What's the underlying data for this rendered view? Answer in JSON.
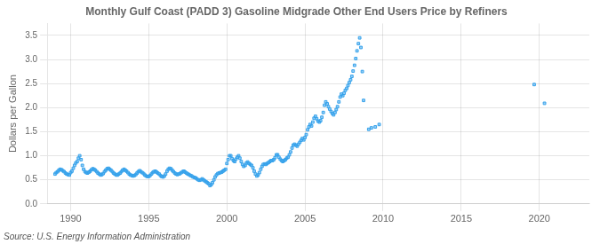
{
  "chart_data": {
    "type": "scatter",
    "title": "Monthly Gulf Coast (PADD 3) Gasoline Midgrade Other End Users Price by Refiners",
    "ylabel": "Dollars per Gallon",
    "annotation": "Source: U.S. Energy Information Administration",
    "marker": "square",
    "grid": true,
    "xlim": [
      1988.5,
      2023.2
    ],
    "xticks": [
      1990,
      1995,
      2000,
      2005,
      2010,
      2015,
      2020
    ],
    "ylim": [
      0.0,
      3.75
    ],
    "yticks": [
      {
        "value": 0.0,
        "label": "0.0"
      },
      0.5,
      {
        "value": 1.0,
        "label": "1.0"
      },
      1.5,
      {
        "value": 2.0,
        "label": "2.0"
      },
      2.5,
      {
        "value": 3.0,
        "label": "3.0"
      },
      3.5
    ],
    "x": [
      1989.0,
      1989.08,
      1989.17,
      1989.25,
      1989.33,
      1989.42,
      1989.5,
      1989.58,
      1989.67,
      1989.75,
      1989.83,
      1989.92,
      1990.0,
      1990.08,
      1990.17,
      1990.25,
      1990.33,
      1990.42,
      1990.5,
      1990.58,
      1990.67,
      1990.75,
      1990.83,
      1990.92,
      1991.0,
      1991.08,
      1991.17,
      1991.25,
      1991.33,
      1991.42,
      1991.5,
      1991.58,
      1991.67,
      1991.75,
      1991.83,
      1991.92,
      1992.0,
      1992.08,
      1992.17,
      1992.25,
      1992.33,
      1992.42,
      1992.5,
      1992.58,
      1992.67,
      1992.75,
      1992.83,
      1992.92,
      1993.0,
      1993.08,
      1993.17,
      1993.25,
      1993.33,
      1993.42,
      1993.5,
      1993.58,
      1993.67,
      1993.75,
      1993.83,
      1993.92,
      1994.0,
      1994.08,
      1994.17,
      1994.25,
      1994.33,
      1994.42,
      1994.5,
      1994.58,
      1994.67,
      1994.75,
      1994.83,
      1994.92,
      1995.0,
      1995.08,
      1995.17,
      1995.25,
      1995.33,
      1995.42,
      1995.5,
      1995.58,
      1995.67,
      1995.75,
      1995.83,
      1995.92,
      1996.0,
      1996.08,
      1996.17,
      1996.25,
      1996.33,
      1996.42,
      1996.5,
      1996.58,
      1996.67,
      1996.75,
      1996.83,
      1996.92,
      1997.0,
      1997.08,
      1997.17,
      1997.25,
      1997.33,
      1997.42,
      1997.5,
      1997.58,
      1997.67,
      1997.75,
      1997.83,
      1997.92,
      1998.0,
      1998.08,
      1998.17,
      1998.25,
      1998.33,
      1998.42,
      1998.5,
      1998.58,
      1998.67,
      1998.75,
      1998.83,
      1998.92,
      1999.0,
      1999.08,
      1999.17,
      1999.25,
      1999.33,
      1999.42,
      1999.5,
      1999.58,
      1999.67,
      1999.75,
      1999.83,
      1999.92,
      2000.0,
      2000.08,
      2000.17,
      2000.25,
      2000.33,
      2000.42,
      2000.5,
      2000.58,
      2000.67,
      2000.75,
      2000.83,
      2000.92,
      2001.0,
      2001.08,
      2001.17,
      2001.25,
      2001.33,
      2001.42,
      2001.5,
      2001.58,
      2001.67,
      2001.75,
      2001.83,
      2001.92,
      2002.0,
      2002.08,
      2002.17,
      2002.25,
      2002.33,
      2002.42,
      2002.5,
      2002.58,
      2002.67,
      2002.75,
      2002.83,
      2002.92,
      2003.0,
      2003.08,
      2003.17,
      2003.25,
      2003.33,
      2003.42,
      2003.5,
      2003.58,
      2003.67,
      2003.75,
      2003.83,
      2003.92,
      2004.0,
      2004.08,
      2004.17,
      2004.25,
      2004.33,
      2004.42,
      2004.5,
      2004.58,
      2004.67,
      2004.75,
      2004.83,
      2004.92,
      2005.0,
      2005.08,
      2005.17,
      2005.25,
      2005.33,
      2005.42,
      2005.5,
      2005.58,
      2005.67,
      2005.75,
      2005.83,
      2005.92,
      2006.0,
      2006.08,
      2006.17,
      2006.25,
      2006.33,
      2006.42,
      2006.5,
      2006.58,
      2006.67,
      2006.75,
      2006.83,
      2006.92,
      2007.0,
      2007.08,
      2007.17,
      2007.25,
      2007.33,
      2007.42,
      2007.5,
      2007.58,
      2007.67,
      2007.75,
      2007.83,
      2007.92,
      2008.0,
      2008.08,
      2008.17,
      2008.25,
      2008.33,
      2008.42,
      2008.5,
      2008.58,
      2008.67,
      2008.75,
      2009.08,
      2009.25,
      2009.5,
      2009.75,
      2019.67,
      2020.33
    ],
    "values": [
      0.62,
      0.65,
      0.67,
      0.7,
      0.72,
      0.71,
      0.69,
      0.67,
      0.64,
      0.62,
      0.61,
      0.6,
      0.65,
      0.68,
      0.74,
      0.8,
      0.85,
      0.88,
      0.95,
      1.0,
      0.92,
      0.8,
      0.72,
      0.67,
      0.65,
      0.64,
      0.66,
      0.68,
      0.71,
      0.73,
      0.72,
      0.7,
      0.67,
      0.64,
      0.62,
      0.6,
      0.61,
      0.63,
      0.67,
      0.7,
      0.73,
      0.74,
      0.72,
      0.7,
      0.67,
      0.64,
      0.62,
      0.6,
      0.6,
      0.62,
      0.64,
      0.67,
      0.7,
      0.72,
      0.7,
      0.68,
      0.65,
      0.62,
      0.6,
      0.59,
      0.58,
      0.59,
      0.61,
      0.64,
      0.67,
      0.69,
      0.67,
      0.65,
      0.63,
      0.6,
      0.58,
      0.57,
      0.57,
      0.59,
      0.62,
      0.65,
      0.67,
      0.68,
      0.66,
      0.64,
      0.62,
      0.59,
      0.57,
      0.56,
      0.58,
      0.62,
      0.68,
      0.72,
      0.74,
      0.73,
      0.7,
      0.67,
      0.64,
      0.62,
      0.61,
      0.62,
      0.63,
      0.65,
      0.67,
      0.68,
      0.66,
      0.64,
      0.62,
      0.61,
      0.59,
      0.58,
      0.56,
      0.55,
      0.54,
      0.52,
      0.5,
      0.49,
      0.5,
      0.52,
      0.5,
      0.48,
      0.46,
      0.44,
      0.42,
      0.38,
      0.4,
      0.44,
      0.5,
      0.56,
      0.6,
      0.63,
      0.64,
      0.65,
      0.66,
      0.68,
      0.7,
      0.72,
      0.84,
      0.92,
      1.0,
      1.0,
      0.94,
      0.9,
      0.88,
      0.93,
      0.97,
      1.0,
      0.95,
      0.88,
      0.82,
      0.78,
      0.8,
      0.85,
      0.87,
      0.84,
      0.82,
      0.8,
      0.75,
      0.68,
      0.62,
      0.58,
      0.6,
      0.65,
      0.72,
      0.78,
      0.82,
      0.83,
      0.82,
      0.84,
      0.86,
      0.88,
      0.9,
      0.9,
      0.92,
      0.96,
      1.02,
      1.02,
      0.97,
      0.93,
      0.9,
      0.88,
      0.9,
      0.92,
      0.95,
      0.97,
      1.02,
      1.08,
      1.16,
      1.22,
      1.24,
      1.22,
      1.2,
      1.24,
      1.28,
      1.32,
      1.36,
      1.33,
      1.38,
      1.44,
      1.54,
      1.6,
      1.65,
      1.62,
      1.7,
      1.78,
      1.82,
      1.77,
      1.72,
      1.7,
      1.73,
      1.8,
      1.9,
      2.05,
      2.12,
      2.08,
      2.02,
      1.97,
      1.92,
      1.88,
      1.85,
      1.9,
      1.96,
      2.02,
      2.12,
      2.22,
      2.28,
      2.25,
      2.3,
      2.36,
      2.4,
      2.46,
      2.52,
      2.58,
      2.65,
      2.76,
      2.88,
      3.02,
      3.18,
      3.33,
      3.45,
      3.25,
      2.75,
      2.15,
      1.55,
      1.58,
      1.6,
      1.65,
      2.48,
      2.09
    ]
  }
}
